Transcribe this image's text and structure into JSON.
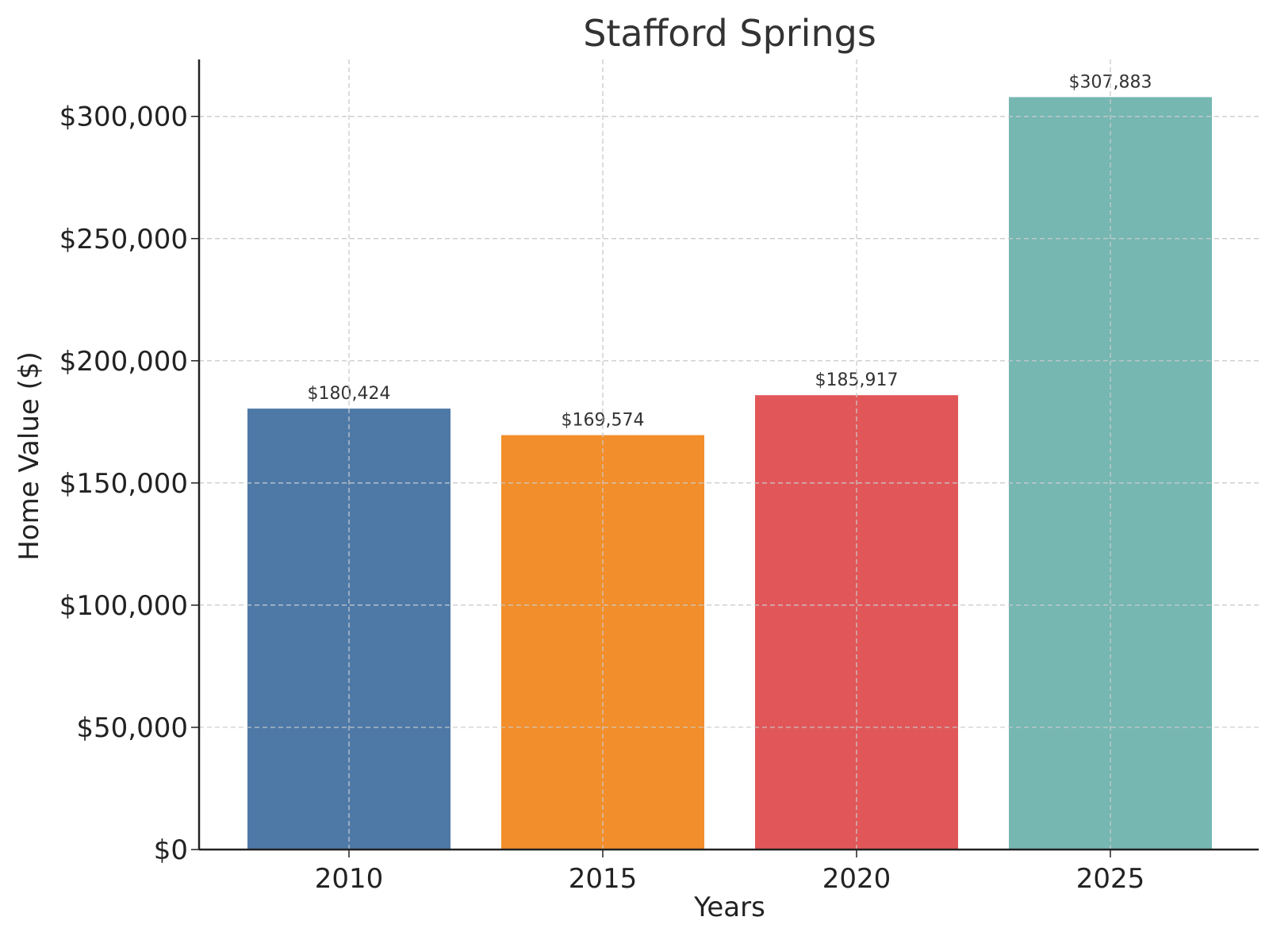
{
  "chart_data": {
    "type": "bar",
    "title": "Stafford Springs",
    "xlabel": "Years",
    "ylabel": "Home Value ($)",
    "categories": [
      "2010",
      "2015",
      "2020",
      "2025"
    ],
    "values": [
      180424,
      169574,
      185917,
      307883
    ],
    "value_labels": [
      "$180,424",
      "$169,574",
      "$185,917",
      "$307,883"
    ],
    "colors": [
      "#4e79a7",
      "#f28e2b",
      "#e15759",
      "#76b7b2"
    ],
    "ylim": [
      0,
      323277
    ],
    "yticks": [
      0,
      50000,
      100000,
      150000,
      200000,
      250000,
      300000
    ],
    "ytick_labels": [
      "$0",
      "$50,000",
      "$100,000",
      "$150,000",
      "$200,000",
      "$250,000",
      "$300,000"
    ],
    "grid": true,
    "grid_style": "dashed"
  }
}
